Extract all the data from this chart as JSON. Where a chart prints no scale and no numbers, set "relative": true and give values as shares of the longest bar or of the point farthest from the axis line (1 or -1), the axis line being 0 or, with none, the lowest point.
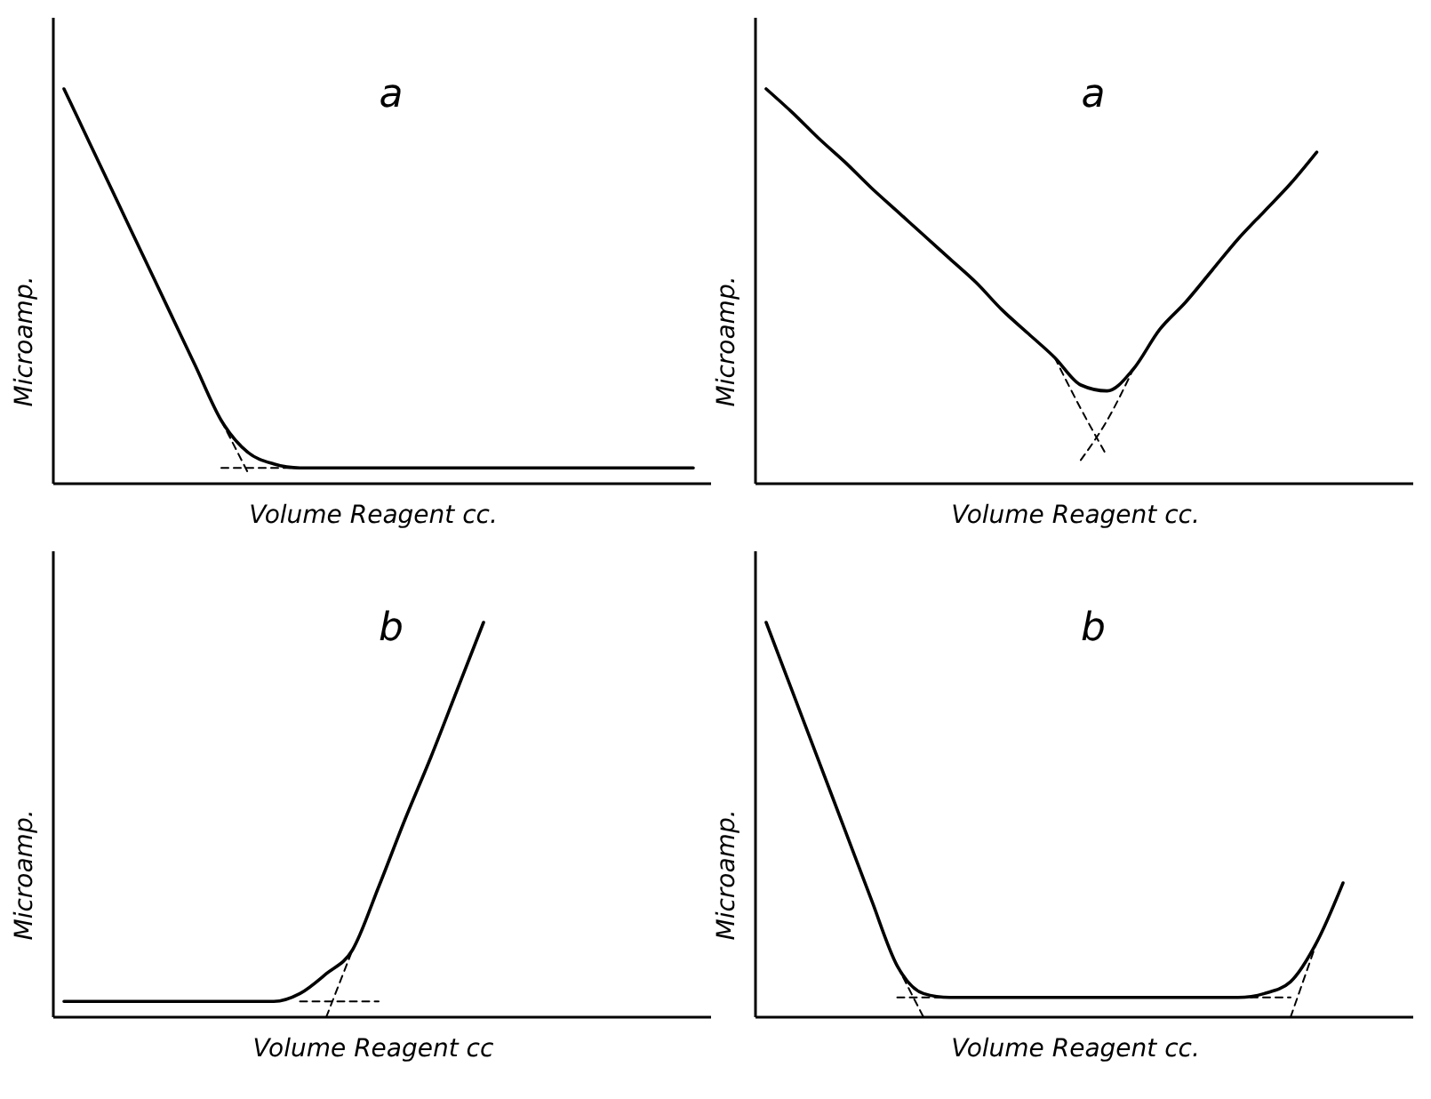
{
  "chart_data": [
    {
      "type": "line",
      "relative": true,
      "title": "a",
      "xlabel": "Volume Reagent  cc.",
      "ylabel": "Microamp.",
      "categories": [
        null,
        null,
        null,
        null,
        null,
        null,
        null,
        null,
        null,
        null,
        null,
        null,
        null,
        null,
        null,
        null,
        null,
        null,
        null,
        null,
        null,
        null,
        null,
        null,
        null
      ],
      "series": [
        {
          "color": "#000000",
          "line_style": "solid",
          "values": [
            1.0,
            0.86,
            0.72,
            0.58,
            0.44,
            0.3,
            0.16,
            0.08,
            0.05,
            0.04,
            0.04,
            0.04,
            0.04,
            0.04,
            0.04,
            0.04,
            0.04,
            0.04,
            0.04,
            0.04,
            0.04,
            0.04,
            0.04,
            0.04,
            0.04
          ]
        },
        {
          "color": "#000000",
          "line_style": "dashed",
          "values": [
            null,
            null,
            null,
            null,
            null,
            null,
            0.16,
            0.03,
            null,
            null,
            null,
            null,
            null,
            null,
            null,
            null,
            null,
            null,
            null,
            null,
            null,
            null,
            null,
            null,
            null
          ]
        },
        {
          "color": "#000000",
          "line_style": "dashed",
          "values": [
            null,
            null,
            null,
            null,
            null,
            null,
            0.04,
            0.04,
            0.04,
            0.04,
            null,
            null,
            null,
            null,
            null,
            null,
            null,
            null,
            null,
            null,
            null,
            null,
            null,
            null,
            null
          ]
        }
      ]
    },
    {
      "type": "line",
      "relative": true,
      "title": "a",
      "xlabel": "Volume Reagent    cc.",
      "ylabel": "Microamp.",
      "categories": [
        null,
        null,
        null,
        null,
        null,
        null,
        null,
        null,
        null,
        null,
        null,
        null,
        null,
        null,
        null,
        null,
        null,
        null,
        null,
        null,
        null,
        null,
        null,
        null,
        null
      ],
      "series": [
        {
          "color": "#000000",
          "line_style": "solid",
          "values": [
            1.0,
            0.94,
            0.875,
            0.815,
            0.75,
            0.69,
            0.63,
            0.57,
            0.51,
            0.44,
            0.38,
            0.32,
            0.25,
            0.235,
            0.29,
            0.39,
            0.46,
            0.54,
            0.62,
            0.69,
            0.76,
            0.84,
            null,
            null,
            null
          ]
        },
        {
          "color": "#000000",
          "line_style": "dashed",
          "values": [
            null,
            null,
            null,
            null,
            null,
            null,
            null,
            null,
            null,
            null,
            null,
            0.32,
            0.19,
            0.07,
            null,
            null,
            null,
            null,
            null,
            null,
            null,
            null,
            null,
            null,
            null
          ]
        },
        {
          "color": "#000000",
          "line_style": "dashed",
          "values": [
            null,
            null,
            null,
            null,
            null,
            null,
            null,
            null,
            null,
            null,
            null,
            null,
            0.06,
            0.16,
            0.29,
            null,
            null,
            null,
            null,
            null,
            null,
            null,
            null,
            null,
            null
          ]
        }
      ]
    },
    {
      "type": "line",
      "relative": true,
      "title": "b",
      "xlabel": "Volume Reagent  cc",
      "ylabel": "Microamp.",
      "categories": [
        null,
        null,
        null,
        null,
        null,
        null,
        null,
        null,
        null,
        null,
        null,
        null,
        null,
        null,
        null,
        null,
        null,
        null,
        null,
        null,
        null,
        null,
        null,
        null,
        null
      ],
      "series": [
        {
          "color": "#000000",
          "line_style": "solid",
          "values": [
            0.04,
            0.04,
            0.04,
            0.04,
            0.04,
            0.04,
            0.04,
            0.04,
            0.04,
            0.06,
            0.11,
            0.17,
            0.33,
            0.5,
            0.66,
            0.83,
            1.0,
            null,
            null,
            null,
            null,
            null,
            null,
            null,
            null
          ]
        },
        {
          "color": "#000000",
          "line_style": "dashed",
          "values": [
            null,
            null,
            null,
            null,
            null,
            null,
            null,
            null,
            null,
            0.04,
            0.04,
            0.04,
            0.04,
            null,
            null,
            null,
            null,
            null,
            null,
            null,
            null,
            null,
            null,
            null,
            null
          ]
        },
        {
          "color": "#000000",
          "line_style": "dashed",
          "values": [
            null,
            null,
            null,
            null,
            null,
            null,
            null,
            null,
            null,
            null,
            0.0,
            0.17,
            null,
            null,
            null,
            null,
            null,
            null,
            null,
            null,
            null,
            null,
            null,
            null,
            null
          ]
        }
      ]
    },
    {
      "type": "line",
      "relative": true,
      "title": "b",
      "xlabel": "Volume Reagent    cc.",
      "ylabel": "Microamp.",
      "categories": [
        null,
        null,
        null,
        null,
        null,
        null,
        null,
        null,
        null,
        null,
        null,
        null,
        null,
        null,
        null,
        null,
        null,
        null,
        null,
        null,
        null,
        null,
        null,
        null,
        null
      ],
      "series": [
        {
          "color": "#000000",
          "line_style": "solid",
          "values": [
            1.0,
            0.825,
            0.65,
            0.475,
            0.3,
            0.13,
            0.06,
            0.05,
            0.05,
            0.05,
            0.05,
            0.05,
            0.05,
            0.05,
            0.05,
            0.05,
            0.05,
            0.05,
            0.05,
            0.06,
            0.09,
            0.19,
            0.34,
            null,
            null
          ]
        },
        {
          "color": "#000000",
          "line_style": "dashed",
          "values": [
            null,
            null,
            null,
            null,
            null,
            0.13,
            0.0,
            null,
            null,
            null,
            null,
            null,
            null,
            null,
            null,
            null,
            null,
            null,
            null,
            null,
            0.0,
            0.19,
            null,
            null,
            null
          ]
        },
        {
          "color": "#000000",
          "line_style": "dashed",
          "values": [
            null,
            null,
            null,
            null,
            null,
            0.05,
            0.05,
            0.05,
            null,
            null,
            null,
            null,
            null,
            null,
            null,
            null,
            null,
            null,
            0.05,
            0.05,
            0.05,
            null,
            null,
            null,
            null
          ]
        }
      ]
    }
  ]
}
